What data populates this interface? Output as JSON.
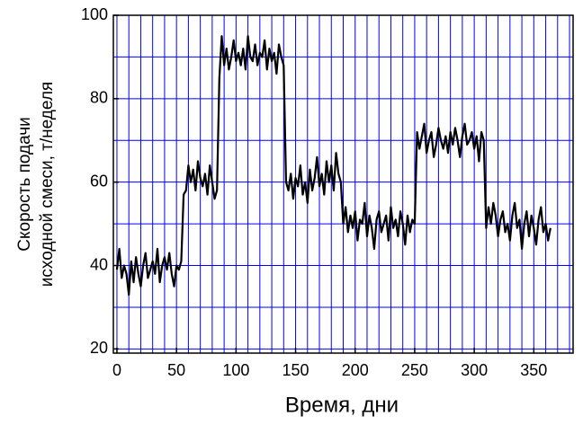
{
  "chart_data": {
    "type": "line",
    "xlabel": "Время, дни",
    "ylabel": [
      "Скорость подачи",
      "исходной смеси, т/неделя"
    ],
    "x": [
      0,
      2,
      4,
      6,
      8,
      10,
      12,
      14,
      16,
      18,
      20,
      22,
      24,
      26,
      28,
      30,
      32,
      34,
      36,
      38,
      40,
      42,
      44,
      46,
      48,
      50,
      52,
      54,
      56,
      58,
      60,
      62,
      64,
      66,
      68,
      70,
      72,
      74,
      76,
      78,
      80,
      82,
      84,
      86,
      88,
      90,
      92,
      94,
      96,
      98,
      100,
      102,
      104,
      106,
      108,
      110,
      112,
      114,
      116,
      118,
      120,
      122,
      124,
      126,
      128,
      130,
      132,
      134,
      136,
      138,
      140,
      142,
      144,
      146,
      148,
      150,
      152,
      154,
      156,
      158,
      160,
      162,
      164,
      166,
      168,
      170,
      172,
      174,
      176,
      178,
      180,
      182,
      184,
      186,
      188,
      190,
      192,
      194,
      196,
      198,
      200,
      202,
      204,
      206,
      208,
      210,
      212,
      214,
      216,
      218,
      220,
      222,
      224,
      226,
      228,
      230,
      232,
      234,
      236,
      238,
      240,
      242,
      244,
      246,
      248,
      250,
      252,
      254,
      256,
      258,
      260,
      262,
      264,
      266,
      268,
      270,
      272,
      274,
      276,
      278,
      280,
      282,
      284,
      286,
      288,
      290,
      292,
      294,
      296,
      298,
      300,
      302,
      304,
      306,
      308,
      310,
      312,
      314,
      316,
      318,
      320,
      322,
      324,
      326,
      328,
      330,
      332,
      334,
      336,
      338,
      340,
      342,
      344,
      346,
      348,
      350,
      352,
      354,
      356,
      358,
      360,
      362,
      364
    ],
    "series": [
      {
        "color": "#000000",
        "values": [
          39,
          44,
          37,
          40,
          38,
          33,
          41,
          36,
          42,
          38,
          35,
          40,
          43,
          37,
          39,
          41,
          38,
          44,
          36,
          40,
          42,
          39,
          43,
          38,
          35,
          40,
          39,
          41,
          57,
          58,
          64,
          60,
          63,
          58,
          65,
          61,
          59,
          62,
          57,
          64,
          60,
          56,
          58,
          85,
          95,
          88,
          92,
          87,
          90,
          94,
          89,
          91,
          88,
          92,
          87,
          95,
          90,
          89,
          93,
          88,
          91,
          90,
          94,
          87,
          92,
          89,
          91,
          86,
          93,
          90,
          88,
          60,
          58,
          62,
          56,
          61,
          59,
          64,
          57,
          60,
          55,
          63,
          58,
          61,
          66,
          59,
          62,
          57,
          65,
          60,
          64,
          58,
          67,
          62,
          60,
          50,
          54,
          48,
          52,
          49,
          53,
          46,
          51,
          50,
          55,
          47,
          52,
          49,
          44,
          51,
          53,
          48,
          50,
          52,
          46,
          54,
          49,
          51,
          47,
          53,
          50,
          45,
          52,
          48,
          51,
          50,
          72,
          68,
          71,
          74,
          67,
          70,
          72,
          66,
          69,
          73,
          70,
          68,
          71,
          67,
          72,
          69,
          73,
          70,
          66,
          71,
          74,
          69,
          70,
          72,
          68,
          71,
          65,
          72,
          70,
          49,
          54,
          50,
          55,
          52,
          47,
          51,
          53,
          48,
          50,
          46,
          52,
          55,
          49,
          51,
          44,
          50,
          53,
          47,
          52,
          49,
          45,
          51,
          54,
          48,
          50,
          46,
          49
        ]
      }
    ],
    "xlim": [
      -3,
      383
    ],
    "ylim": [
      19,
      100
    ],
    "xticks": [
      0,
      50,
      100,
      150,
      200,
      250,
      300,
      350
    ],
    "yticks": [
      20,
      40,
      60,
      80,
      100
    ],
    "xgrid": [
      0,
      10,
      20,
      30,
      40,
      50,
      60,
      70,
      80,
      90,
      100,
      110,
      120,
      130,
      140,
      150,
      160,
      170,
      180,
      190,
      200,
      210,
      220,
      230,
      240,
      250,
      260,
      270,
      280,
      290,
      300,
      310,
      320,
      330,
      340,
      350,
      360,
      370,
      380
    ],
    "ygrid": [
      20,
      30,
      40,
      50,
      60,
      70,
      80,
      90,
      100
    ],
    "grid_color": "#0000ff"
  }
}
